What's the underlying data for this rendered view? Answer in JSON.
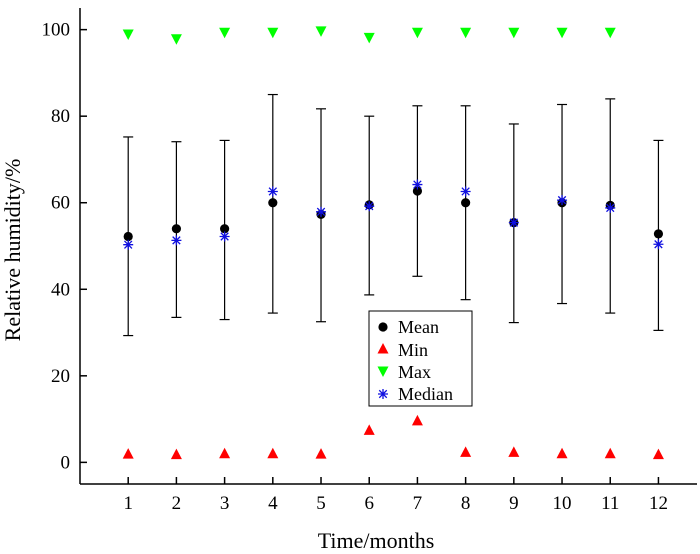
{
  "chart_data": {
    "type": "scatter",
    "title": "",
    "xlabel": "Time/months",
    "ylabel": "Relative humidity/%",
    "xlim": [
      0,
      12.8
    ],
    "ylim": [
      -5,
      105
    ],
    "x": [
      1,
      2,
      3,
      4,
      5,
      6,
      7,
      8,
      9,
      10,
      11,
      12
    ],
    "x_ticks": [
      1,
      2,
      3,
      4,
      5,
      6,
      7,
      8,
      9,
      10,
      11,
      12
    ],
    "y_ticks": [
      0,
      20,
      40,
      60,
      80,
      100
    ],
    "error_bars": {
      "center": "Mean",
      "lower": [
        29.3,
        33.5,
        33.0,
        34.5,
        32.5,
        38.7,
        43.0,
        37.6,
        32.3,
        36.7,
        34.5,
        30.5
      ],
      "upper": [
        75.2,
        74.1,
        74.4,
        85.0,
        81.7,
        80.0,
        82.4,
        82.4,
        78.2,
        82.7,
        84.0,
        74.4
      ]
    },
    "series": [
      {
        "name": "Mean",
        "marker": "circle",
        "color": "#000000",
        "values": [
          52.2,
          54.0,
          54.0,
          60.0,
          57.3,
          59.5,
          62.7,
          60.0,
          55.4,
          60.0,
          59.4,
          52.8
        ]
      },
      {
        "name": "Min",
        "marker": "triangle-up",
        "color": "#ff0000",
        "values": [
          1.9,
          1.8,
          2.0,
          2.0,
          1.9,
          7.4,
          9.6,
          2.3,
          2.3,
          2.0,
          2.0,
          1.8
        ]
      },
      {
        "name": "Max",
        "marker": "triangle-down",
        "color": "#00ff00",
        "values": [
          99.0,
          97.9,
          99.4,
          99.4,
          99.7,
          98.2,
          99.4,
          99.4,
          99.4,
          99.4,
          99.4,
          null
        ]
      },
      {
        "name": "Median",
        "marker": "asterisk",
        "color": "#1010e0",
        "values": [
          50.3,
          51.3,
          52.2,
          62.6,
          57.9,
          59.2,
          64.2,
          62.6,
          55.4,
          60.6,
          58.8,
          50.4
        ]
      }
    ],
    "legend": {
      "position": "center",
      "entries": [
        "Mean",
        "Min",
        "Max",
        "Median"
      ]
    },
    "grid": false
  }
}
